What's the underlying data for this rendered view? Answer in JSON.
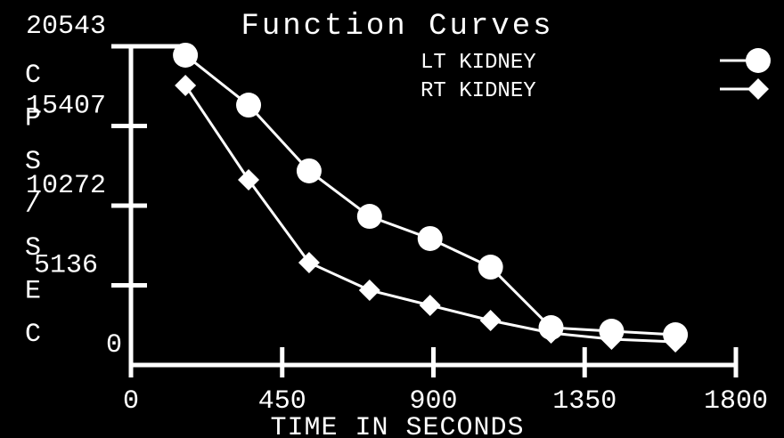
{
  "chart_data": {
    "type": "line",
    "title": "Function Curves",
    "xlabel": "TIME IN SECONDS",
    "ylabel": "CPS/SEC",
    "xlim": [
      0,
      1800
    ],
    "xticks": [
      0,
      450,
      900,
      1350,
      1800
    ],
    "ylim": [
      0,
      20543
    ],
    "yticks": [
      0,
      5136,
      10272,
      15407,
      20543
    ],
    "series": [
      {
        "name": "LT KIDNEY",
        "color": "#ffffff",
        "marker": "circle",
        "x": [
          162,
          350,
          530,
          710,
          890,
          1070,
          1250,
          1430,
          1620
        ],
        "values": [
          19970,
          16755,
          12510,
          9580,
          8150,
          6310,
          2410,
          2180,
          1950
        ]
      },
      {
        "name": "RT KIDNEY",
        "color": "#ffffff",
        "marker": "diamond",
        "x": [
          162,
          350,
          530,
          710,
          890,
          1070,
          1250,
          1430,
          1620
        ],
        "values": [
          18020,
          11935,
          6600,
          4820,
          3845,
          2870,
          2065,
          1665,
          1490
        ]
      }
    ]
  }
}
